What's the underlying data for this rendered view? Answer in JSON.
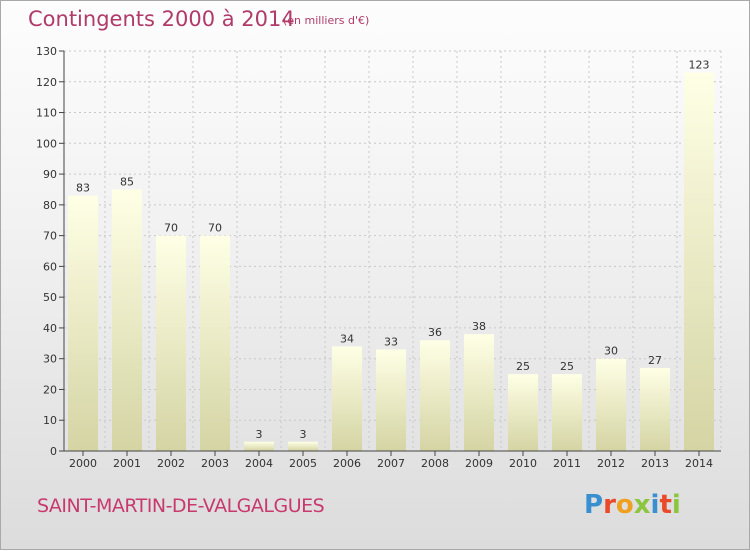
{
  "header": {
    "title": "Contingents 2000 à 2014",
    "subtitle": "(en milliers d'€)"
  },
  "footer": {
    "commune": "SAINT-MARTIN-DE-VALGALGUES",
    "logo": "Proxiti",
    "logo_colors": [
      "#3a8fd0",
      "#e84a2a",
      "#f0a020",
      "#8cc63f",
      "#3a8fd0",
      "#e84a2a",
      "#8cc63f"
    ]
  },
  "chart_data": {
    "type": "bar",
    "title": "Contingents 2000 à 2014",
    "subtitle": "(en milliers d'€)",
    "categories": [
      "2000",
      "2001",
      "2002",
      "2003",
      "2004",
      "2005",
      "2006",
      "2007",
      "2008",
      "2009",
      "2010",
      "2011",
      "2012",
      "2013",
      "2014"
    ],
    "values": [
      83,
      85,
      70,
      70,
      3,
      3,
      34,
      33,
      36,
      38,
      25,
      25,
      30,
      27,
      123
    ],
    "ylim": [
      0,
      130
    ],
    "yticks": [
      0,
      10,
      20,
      30,
      40,
      50,
      60,
      70,
      80,
      90,
      100,
      110,
      120,
      130
    ],
    "grid": true,
    "data_labels": true,
    "bar_color_top": "#ffffe6",
    "bar_color_bottom": "#d4d4a4"
  }
}
